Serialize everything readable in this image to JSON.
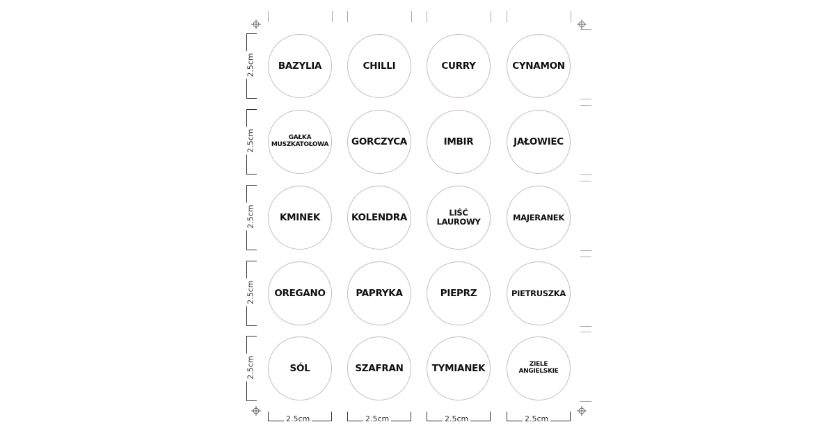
{
  "sheet": {
    "dimension_label": "2.5cm",
    "rows": [
      [
        "BAZYLIA",
        "CHILLI",
        "CURRY",
        "CYNAMON"
      ],
      [
        "GAŁKA\nMUSZKATOŁOWA",
        "GORCZYCA",
        "IMBIR",
        "JAŁOWIEC"
      ],
      [
        "KMINEK",
        "KOLENDRA",
        "LIŚĆ\nLAUROWY",
        "MAJERANEK"
      ],
      [
        "OREGANO",
        "PAPRYKA",
        "PIEPRZ",
        "PIETRUSZKA"
      ],
      [
        "SÓL",
        "SZAFRAN",
        "TYMIANEK",
        "ZIELE\nANGIELSKIE"
      ]
    ],
    "circle_color": "#c9b9b9"
  }
}
